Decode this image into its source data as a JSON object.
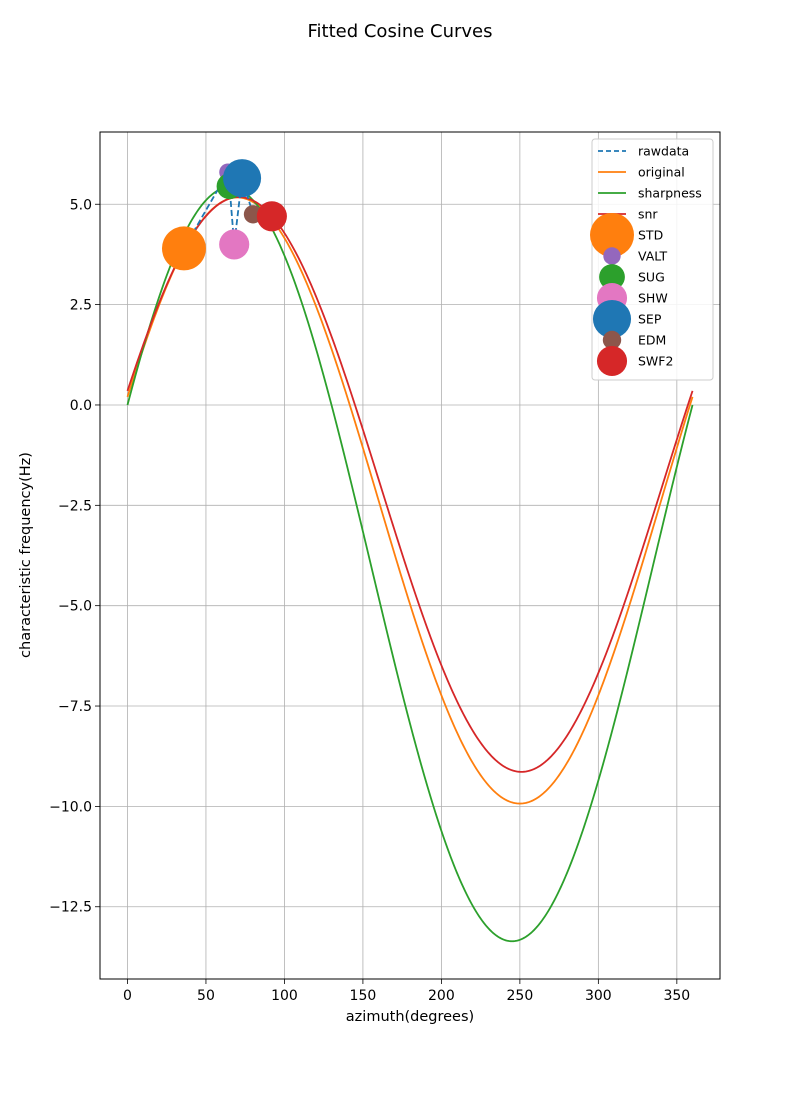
{
  "chart_data": {
    "type": "line",
    "title": "Fitted Cosine Curves",
    "xlabel": "azimuth(degrees)",
    "ylabel": "characteristic frequency(Hz)",
    "xlim": [
      -17.5,
      377.5
    ],
    "ylim": [
      -14.3,
      6.8
    ],
    "xticks": [
      0,
      50,
      100,
      150,
      200,
      250,
      300,
      350
    ],
    "xtick_labels": [
      "0",
      "50",
      "100",
      "150",
      "200",
      "250",
      "300",
      "350"
    ],
    "yticks": [
      5.0,
      2.5,
      0.0,
      -2.5,
      -5.0,
      -7.5,
      -10.0,
      -12.5
    ],
    "ytick_labels": [
      "5.0",
      "2.5",
      "0.0",
      "−2.5",
      "−5.0",
      "−7.5",
      "−10.0",
      "−12.5"
    ],
    "grid": true,
    "legend_position": "top-right",
    "colors": {
      "blue": "#1f77b4",
      "orange": "#ff7f0e",
      "green": "#2ca02c",
      "red": "#d62728",
      "purple": "#9467bd",
      "brown": "#8c564b",
      "pink": "#e377c2"
    },
    "curves": [
      {
        "name": "original",
        "color": "#ff7f0e",
        "params": {
          "offset": -2.38,
          "amplitude": 7.55,
          "phase_deg": 70,
          "x_min": 0,
          "x_max": 360
        }
      },
      {
        "name": "sharpness",
        "color": "#2ca02c",
        "params": {
          "offset": -3.97,
          "amplitude": 9.39,
          "phase_deg": 65,
          "x_min": 0,
          "x_max": 360
        }
      },
      {
        "name": "snr",
        "color": "#d62728",
        "params": {
          "offset": -1.98,
          "amplitude": 7.16,
          "phase_deg": 71,
          "x_min": 0,
          "x_max": 360
        }
      }
    ],
    "rawdata": {
      "name": "rawdata",
      "color": "#1f77b4",
      "x": [
        36,
        64,
        65,
        68,
        73,
        80,
        92
      ],
      "y": [
        3.9,
        5.8,
        5.45,
        4.0,
        5.65,
        4.75,
        4.7
      ]
    },
    "stations": [
      {
        "name": "STD",
        "color": "#ff7f0e",
        "x": 36,
        "y": 3.9,
        "size": 1600
      },
      {
        "name": "VALT",
        "color": "#9467bd",
        "x": 64,
        "y": 5.8,
        "size": 250
      },
      {
        "name": "SUG",
        "color": "#2ca02c",
        "x": 65,
        "y": 5.45,
        "size": 550
      },
      {
        "name": "SHW",
        "color": "#e377c2",
        "x": 68,
        "y": 4.0,
        "size": 750
      },
      {
        "name": "SEP",
        "color": "#1f77b4",
        "x": 73,
        "y": 5.65,
        "size": 1200
      },
      {
        "name": "EDM",
        "color": "#8c564b",
        "x": 80,
        "y": 4.75,
        "size": 280
      },
      {
        "name": "SWF2",
        "color": "#d62728",
        "x": 92,
        "y": 4.7,
        "size": 750
      }
    ],
    "legend": [
      "rawdata",
      "original",
      "sharpness",
      "snr",
      "STD",
      "VALT",
      "SUG",
      "SHW",
      "SEP",
      "EDM",
      "SWF2"
    ]
  }
}
